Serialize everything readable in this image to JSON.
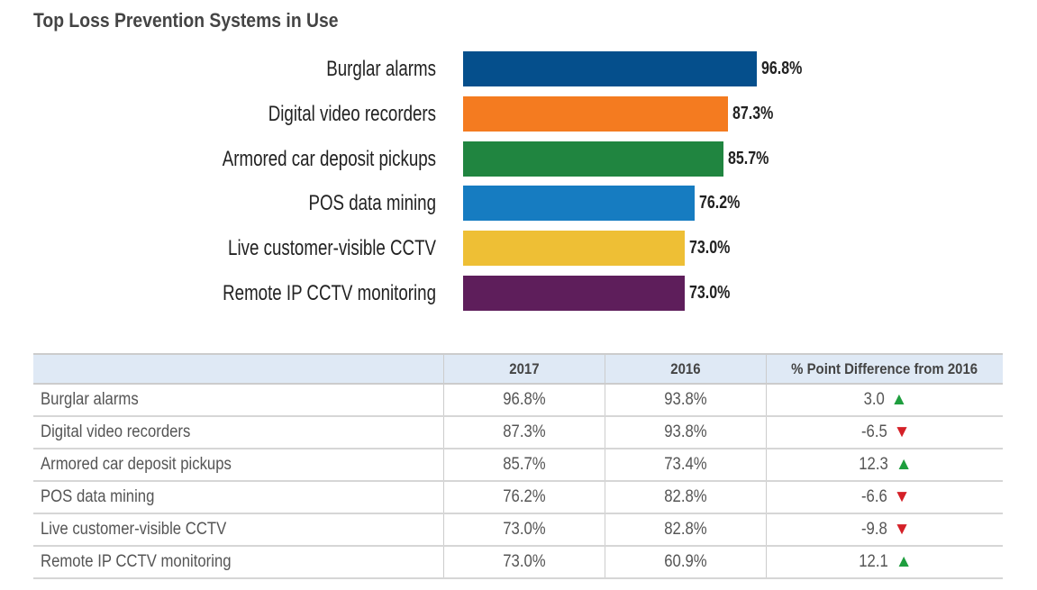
{
  "chart_data": {
    "type": "bar",
    "orientation": "horizontal",
    "title": "Top Loss Prevention Systems in Use",
    "categories": [
      "Burglar alarms",
      "Digital video recorders",
      "Armored car deposit pickups",
      "POS data mining",
      "Live customer-visible CCTV",
      "Remote IP CCTV monitoring"
    ],
    "values": [
      96.8,
      87.3,
      85.7,
      76.2,
      73.0,
      73.0
    ],
    "value_labels": [
      "96.8%",
      "87.3%",
      "85.7%",
      "76.2%",
      "73.0%",
      "73.0%"
    ],
    "colors": [
      "#054f8c",
      "#f47b20",
      "#208540",
      "#167cc1",
      "#eebf35",
      "#5e1e5b"
    ],
    "xlim": [
      0,
      100
    ],
    "grid": false
  },
  "table": {
    "headers": [
      "",
      "2017",
      "2016",
      "% Point Difference from 2016"
    ],
    "rows": [
      {
        "name": "Burglar alarms",
        "y2017": "96.8%",
        "y2016": "93.8%",
        "diff": "3.0",
        "trend": "up"
      },
      {
        "name": "Digital video recorders",
        "y2017": "87.3%",
        "y2016": "93.8%",
        "diff": "-6.5",
        "trend": "down"
      },
      {
        "name": "Armored car deposit pickups",
        "y2017": "85.7%",
        "y2016": "73.4%",
        "diff": "12.3",
        "trend": "up"
      },
      {
        "name": "POS data mining",
        "y2017": "76.2%",
        "y2016": "82.8%",
        "diff": "-6.6",
        "trend": "down"
      },
      {
        "name": "Live customer-visible CCTV",
        "y2017": "73.0%",
        "y2016": "82.8%",
        "diff": "-9.8",
        "trend": "down"
      },
      {
        "name": "Remote IP CCTV monitoring",
        "y2017": "73.0%",
        "y2016": "60.9%",
        "diff": "12.1",
        "trend": "up"
      }
    ]
  }
}
